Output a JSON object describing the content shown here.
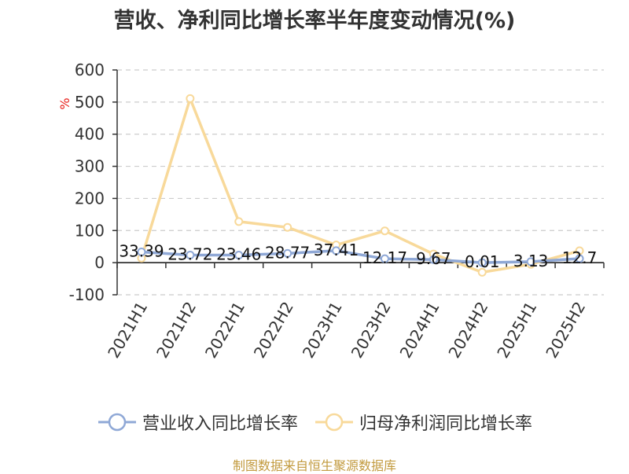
{
  "chart_data": {
    "type": "line",
    "title": "营收、净利同比增长率半年度变动情况(%)",
    "ylabel": "%",
    "ylim": [
      -100,
      600
    ],
    "yticks": [
      600,
      500,
      400,
      300,
      200,
      100,
      0,
      -100
    ],
    "grid": true,
    "legend_position": "bottom",
    "categories": [
      "2021H1",
      "2021H2",
      "2022H1",
      "2022H2",
      "2023H1",
      "2023H2",
      "2024H1",
      "2024H2",
      "2025H1",
      "2025H2"
    ],
    "series": [
      {
        "name": "营业收入同比增长率",
        "color": "#8fa8d6",
        "values": [
          33.39,
          23.72,
          23.46,
          28.77,
          37.41,
          12.17,
          9.67,
          0.01,
          3.13,
          12.7
        ],
        "labels": [
          "33.39",
          "23.72",
          "23.46",
          "28.77",
          "37.41",
          "12.17",
          "9.67",
          "0.01",
          "3.13",
          "12.7"
        ]
      },
      {
        "name": "归母净利润同比增长率",
        "color": "#f8d99a",
        "values": [
          14,
          511,
          128,
          110,
          55,
          99,
          27,
          -30,
          -5,
          37
        ]
      }
    ]
  },
  "footer": {
    "source": "制图数据来自恒生聚源数据库"
  }
}
